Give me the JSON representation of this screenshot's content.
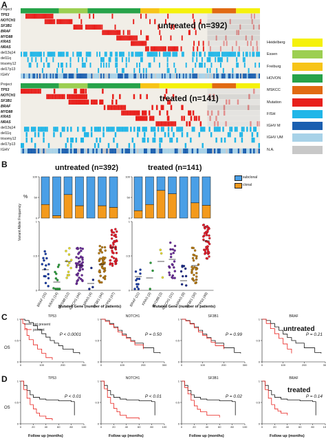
{
  "panels": {
    "a": "A",
    "b": "B",
    "c": "C",
    "d": "D"
  },
  "oncoprint": {
    "row_labels": [
      "Project",
      "TP53",
      "NOTCH1",
      "SF3B1",
      "BRAF",
      "MYD88",
      "KRAS",
      "NRAS",
      "del13q14",
      "del11q",
      "trisomy12",
      "del17p13",
      "IGHV"
    ],
    "italic_rows": [
      1,
      2,
      3,
      4,
      5,
      6,
      7
    ],
    "untreated_title": "untreated (n=392)",
    "treated_title": "treated (n=141)"
  },
  "legend": [
    {
      "label": "Heidelberg",
      "color": "#f5f10b"
    },
    {
      "label": "Essen",
      "color": "#9ccf52"
    },
    {
      "label": "Freiburg",
      "color": "#f7c417"
    },
    {
      "label": "HOVON",
      "color": "#27a34a"
    },
    {
      "label": "MSKCC",
      "color": "#e16a12"
    },
    {
      "label": "Mutation",
      "color": "#e8201c"
    },
    {
      "label": "FISH",
      "color": "#20b6e8"
    },
    {
      "label": "IGHV M",
      "color": "#1a5fb0"
    },
    {
      "label": "IGHV UM",
      "color": "#a8d2e8"
    },
    {
      "label": "N.A.",
      "color": "#c8c8c8"
    }
  ],
  "panel_b": {
    "untreated_title": "untreated (n=392)",
    "treated_title": "treated (n=141)",
    "bar_ylabel": "%",
    "scatter_ylabel": "Variant Allele Frequency",
    "xlabel": "Mutated Gene (number of patients)",
    "legend_subclonal": "subclonal",
    "legend_clonal": "clonal"
  },
  "panel_c": {
    "titles": [
      "TP53",
      "NOTCH1",
      "SF3B1",
      "BRAF"
    ],
    "ylabel": "OS",
    "legend_not_present": "not present",
    "legend_present": "present",
    "tag": "untreated"
  },
  "panel_d": {
    "ylabel": "OS",
    "xlabel": "Follow up (months)",
    "tag": "treated"
  },
  "chart_data": [
    {
      "type": "bar",
      "title": "untreated (n=392)",
      "categories": [
        "BRAF (15)",
        "KRAS (14)",
        "MYD88 (12)",
        "NOTCH1 (44)",
        "NRAS (4)",
        "SF3B1 (44)",
        "TP53 (47)"
      ],
      "series": [
        {
          "name": "clonal",
          "values": [
            33,
            6,
            57,
            30,
            0,
            30,
            26
          ]
        },
        {
          "name": "subclonal",
          "values": [
            67,
            94,
            43,
            70,
            100,
            70,
            74
          ]
        }
      ],
      "ylabel": "%",
      "ylim": [
        0,
        100
      ]
    },
    {
      "type": "bar",
      "title": "treated (n=141)",
      "categories": [
        "BRAF (11)",
        "KRAS (3)",
        "MYD88 (3)",
        "NOTCH1 (21)",
        "NRAS (9)",
        "SF3B1 (30)",
        "TP53 (49)"
      ],
      "series": [
        {
          "name": "clonal",
          "values": [
            18,
            33,
            67,
            59,
            0,
            37,
            31
          ]
        },
        {
          "name": "subclonal",
          "values": [
            82,
            67,
            33,
            41,
            100,
            63,
            69
          ]
        }
      ],
      "ylabel": "%",
      "ylim": [
        0,
        100
      ]
    },
    {
      "type": "scatter",
      "title": "untreated (n=392)",
      "categories": [
        "BRAF (15)",
        "KRAS (14)",
        "MYD88 (12)",
        "NOTCH1 (44)",
        "NRAS (4)",
        "SF3B1 (44)",
        "TP53 (47)"
      ],
      "medians": [
        0.3,
        0.12,
        0.42,
        0.36,
        0.1,
        0.38,
        0.62
      ],
      "ylabel": "Variant Allele Frequency",
      "ylim": [
        0,
        1
      ]
    },
    {
      "type": "scatter",
      "title": "treated (n=141)",
      "categories": [
        "BRAF (11)",
        "KRAS (3)",
        "MYD88 (3)",
        "NOTCH1 (21)",
        "NRAS (9)",
        "SF3B1 (30)",
        "TP53 (49)"
      ],
      "medians": [
        0.2,
        0.18,
        0.42,
        0.45,
        0.14,
        0.36,
        0.72
      ],
      "ylabel": "Variant Allele Frequency",
      "ylim": [
        0,
        1
      ]
    },
    {
      "type": "line",
      "title": "TP53",
      "group": "untreated",
      "annotation": "P < 0.0001",
      "xlim": [
        0,
        300
      ],
      "ylim": [
        0,
        1
      ],
      "ylabel": "OS",
      "series": [
        {
          "name": "not present",
          "x": [
            0,
            20,
            40,
            60,
            80,
            100,
            120,
            140,
            160,
            180,
            200,
            250,
            280
          ],
          "y": [
            1,
            0.97,
            0.92,
            0.85,
            0.76,
            0.66,
            0.58,
            0.5,
            0.44,
            0.38,
            0.3,
            0.22,
            0.18
          ]
        },
        {
          "name": "present",
          "x": [
            0,
            10,
            20,
            30,
            40,
            60,
            80,
            100,
            120,
            150
          ],
          "y": [
            1,
            0.9,
            0.78,
            0.62,
            0.52,
            0.4,
            0.3,
            0.2,
            0.1,
            0.05
          ]
        }
      ]
    },
    {
      "type": "line",
      "title": "NOTCH1",
      "group": "untreated",
      "annotation": "P = 0.50",
      "xlim": [
        0,
        300
      ],
      "ylim": [
        0,
        1
      ],
      "ylabel": "OS",
      "series": [
        {
          "name": "not present",
          "x": [
            0,
            20,
            40,
            60,
            80,
            100,
            120,
            140,
            160,
            200,
            250,
            280
          ],
          "y": [
            1,
            0.97,
            0.9,
            0.82,
            0.74,
            0.65,
            0.57,
            0.5,
            0.44,
            0.33,
            0.22,
            0.2
          ]
        },
        {
          "name": "present",
          "x": [
            0,
            20,
            40,
            60,
            80,
            100,
            120,
            140,
            160,
            200
          ],
          "y": [
            1,
            0.95,
            0.88,
            0.8,
            0.7,
            0.62,
            0.55,
            0.48,
            0.4,
            0.3
          ]
        }
      ]
    },
    {
      "type": "line",
      "title": "SF3B1",
      "group": "untreated",
      "annotation": "P = 0.99",
      "xlim": [
        0,
        300
      ],
      "ylim": [
        0,
        1
      ],
      "ylabel": "OS",
      "series": [
        {
          "name": "not present",
          "x": [
            0,
            20,
            40,
            60,
            80,
            100,
            120,
            140,
            160,
            200,
            250,
            280
          ],
          "y": [
            1,
            0.97,
            0.9,
            0.82,
            0.74,
            0.65,
            0.57,
            0.5,
            0.44,
            0.33,
            0.22,
            0.2
          ]
        },
        {
          "name": "present",
          "x": [
            0,
            20,
            40,
            60,
            80,
            100,
            120,
            140,
            160,
            200
          ],
          "y": [
            1,
            0.96,
            0.89,
            0.8,
            0.7,
            0.62,
            0.55,
            0.46,
            0.38,
            0.3
          ]
        }
      ]
    },
    {
      "type": "line",
      "title": "BRAF",
      "group": "untreated",
      "annotation": "P = 0.21",
      "xlim": [
        0,
        300
      ],
      "ylim": [
        0,
        1
      ],
      "ylabel": "OS",
      "series": [
        {
          "name": "not present",
          "x": [
            0,
            20,
            40,
            60,
            80,
            100,
            120,
            140,
            160,
            200,
            250,
            280
          ],
          "y": [
            1,
            0.97,
            0.9,
            0.82,
            0.74,
            0.65,
            0.57,
            0.5,
            0.44,
            0.33,
            0.22,
            0.2
          ]
        },
        {
          "name": "present",
          "x": [
            0,
            20,
            40,
            60,
            80,
            100,
            120,
            140
          ],
          "y": [
            1,
            0.9,
            0.78,
            0.66,
            0.55,
            0.42,
            0.3,
            0.2
          ]
        }
      ]
    },
    {
      "type": "line",
      "title": "TP53",
      "group": "treated",
      "annotation": "P < 0.01",
      "xlim": [
        0,
        100
      ],
      "ylim": [
        0,
        1
      ],
      "ylabel": "OS",
      "xlabel": "Follow up (months)",
      "series": [
        {
          "name": "not present",
          "x": [
            0,
            5,
            10,
            15,
            20,
            30,
            40,
            60,
            80,
            85
          ],
          "y": [
            1,
            0.9,
            0.78,
            0.68,
            0.62,
            0.58,
            0.56,
            0.54,
            0.52,
            0.2
          ]
        },
        {
          "name": "present",
          "x": [
            0,
            5,
            10,
            15,
            20,
            25,
            30,
            40,
            50
          ],
          "y": [
            1,
            0.8,
            0.6,
            0.45,
            0.35,
            0.25,
            0.18,
            0.12,
            0.08
          ]
        }
      ]
    },
    {
      "type": "line",
      "title": "NOTCH1",
      "group": "treated",
      "annotation": "P < 0.01",
      "xlim": [
        0,
        100
      ],
      "ylim": [
        0,
        1
      ],
      "ylabel": "OS",
      "xlabel": "Follow up (months)",
      "series": [
        {
          "name": "not present",
          "x": [
            0,
            5,
            10,
            15,
            20,
            30,
            40,
            60,
            80,
            85
          ],
          "y": [
            1,
            0.9,
            0.78,
            0.68,
            0.62,
            0.58,
            0.56,
            0.54,
            0.52,
            0.2
          ]
        },
        {
          "name": "present",
          "x": [
            0,
            5,
            10,
            15,
            20,
            25,
            30,
            40,
            60
          ],
          "y": [
            1,
            0.82,
            0.62,
            0.48,
            0.36,
            0.28,
            0.2,
            0.14,
            0.1
          ]
        }
      ]
    },
    {
      "type": "line",
      "title": "SF3B1",
      "group": "treated",
      "annotation": "P = 0.02",
      "xlim": [
        0,
        100
      ],
      "ylim": [
        0,
        1
      ],
      "ylabel": "OS",
      "xlabel": "Follow up (months)",
      "series": [
        {
          "name": "not present",
          "x": [
            0,
            5,
            10,
            15,
            20,
            30,
            40,
            60,
            80,
            85
          ],
          "y": [
            1,
            0.9,
            0.78,
            0.68,
            0.62,
            0.58,
            0.56,
            0.54,
            0.52,
            0.2
          ]
        },
        {
          "name": "present",
          "x": [
            0,
            5,
            10,
            15,
            20,
            25,
            30,
            40,
            60
          ],
          "y": [
            1,
            0.85,
            0.7,
            0.55,
            0.42,
            0.34,
            0.28,
            0.2,
            0.15
          ]
        }
      ]
    },
    {
      "type": "line",
      "title": "BRAF",
      "group": "treated",
      "annotation": "P = 0.14",
      "xlim": [
        0,
        100
      ],
      "ylim": [
        0,
        1
      ],
      "ylabel": "OS",
      "xlabel": "Follow up (months)",
      "series": [
        {
          "name": "not present",
          "x": [
            0,
            5,
            10,
            15,
            20,
            30,
            40,
            60,
            80,
            85
          ],
          "y": [
            1,
            0.9,
            0.78,
            0.68,
            0.62,
            0.58,
            0.56,
            0.54,
            0.52,
            0.2
          ]
        },
        {
          "name": "present",
          "x": [
            0,
            5,
            10,
            15,
            20,
            25,
            30,
            40
          ],
          "y": [
            1,
            0.8,
            0.6,
            0.45,
            0.35,
            0.3,
            0.25,
            0.2
          ]
        }
      ]
    }
  ]
}
